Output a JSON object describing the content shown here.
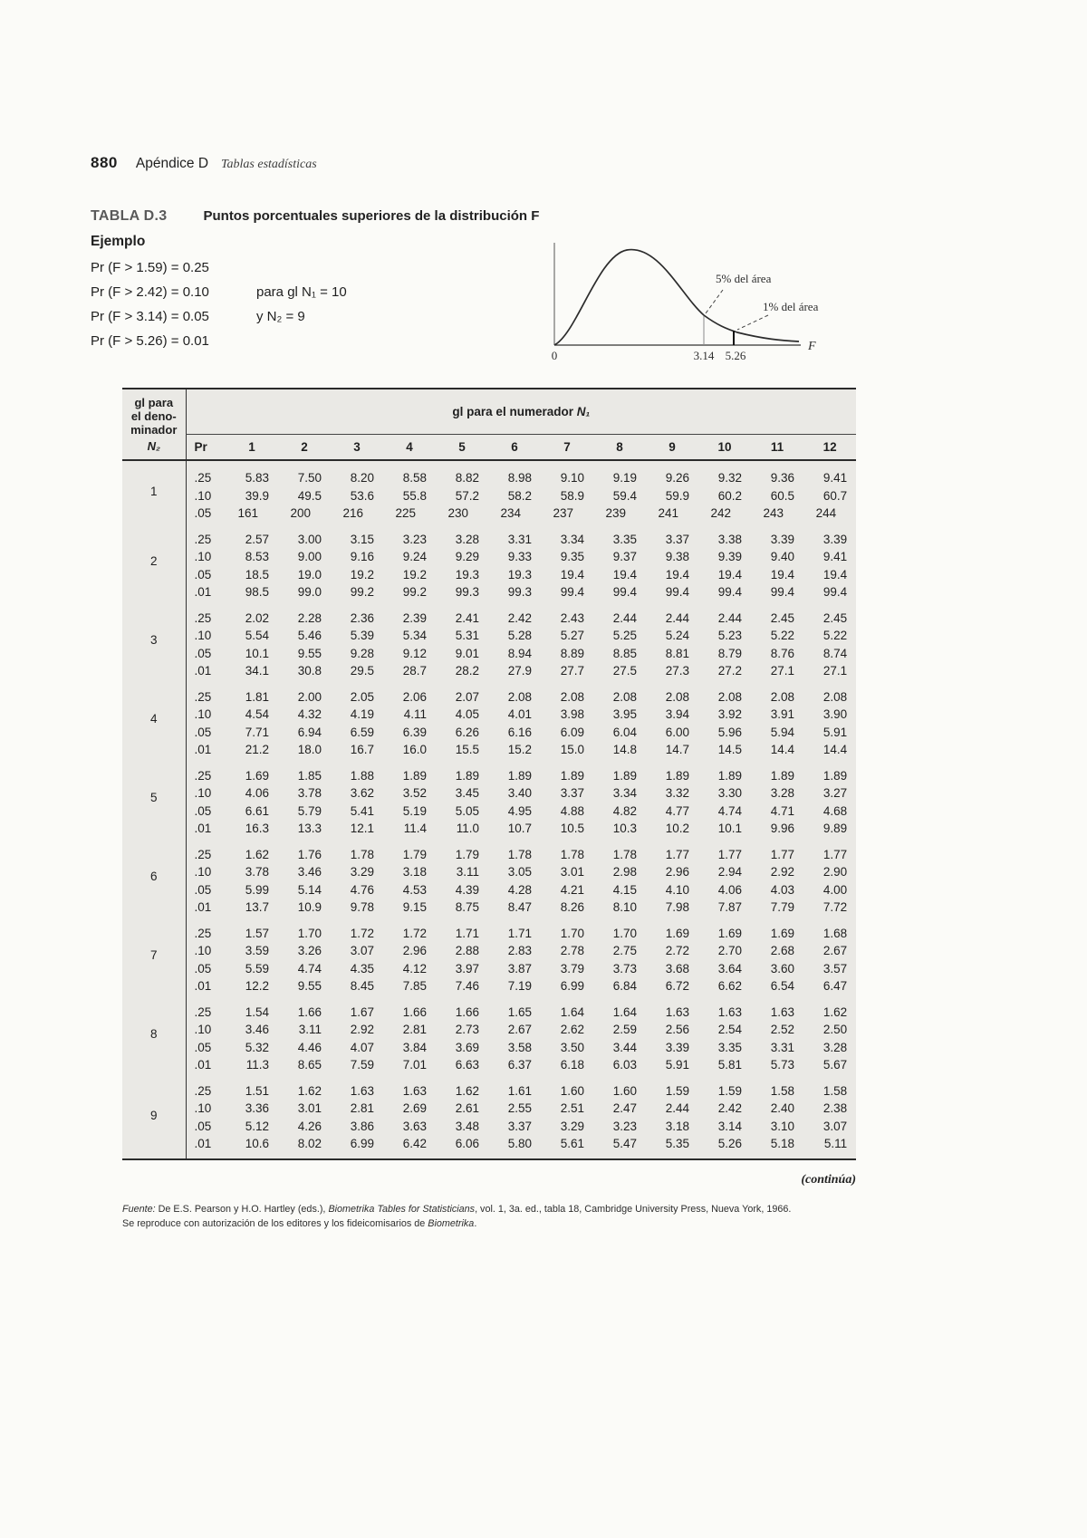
{
  "page": {
    "page_number": "880",
    "chapter": "Apéndice D",
    "chapter_subtitle": "Tablas estadísticas"
  },
  "table_header": {
    "label": "TABLA D.3",
    "title": "Puntos porcentuales superiores de la distribución F"
  },
  "example": {
    "heading": "Ejemplo",
    "lines": [
      {
        "eq": "Pr (F > 1.59) = 0.25",
        "note": ""
      },
      {
        "eq": "Pr (F > 2.42) = 0.10",
        "note": "para gl N₁ = 10"
      },
      {
        "eq": "Pr (F > 3.14) = 0.05",
        "note": "y N₂ = 9"
      },
      {
        "eq": "Pr (F > 5.26) = 0.01",
        "note": ""
      }
    ]
  },
  "figure": {
    "label_5pct": "5% del área",
    "label_1pct": "1% del área",
    "x_origin": "0",
    "x_tick_1": "3.14",
    "x_tick_2": "5.26",
    "axis_label": "F"
  },
  "table": {
    "corner_lines": [
      "gl para",
      "el deno-",
      "minador"
    ],
    "corner_var": "N₂",
    "numerator_header_text": "gl para el numerador ",
    "numerator_header_var": "N₁",
    "pr_header": "Pr",
    "columns": [
      "1",
      "2",
      "3",
      "4",
      "5",
      "6",
      "7",
      "8",
      "9",
      "10",
      "11",
      "12"
    ],
    "groups": [
      {
        "n2": "1",
        "rows": [
          {
            "pr": ".25",
            "values": [
              "5.83",
              "7.50",
              "8.20",
              "8.58",
              "8.82",
              "8.98",
              "9.10",
              "9.19",
              "9.26",
              "9.32",
              "9.36",
              "9.41"
            ]
          },
          {
            "pr": ".10",
            "values": [
              "39.9",
              "49.5",
              "53.6",
              "55.8",
              "57.2",
              "58.2",
              "58.9",
              "59.4",
              "59.9",
              "60.2",
              "60.5",
              "60.7"
            ]
          },
          {
            "pr": ".05",
            "values": [
              "161",
              "200",
              "216",
              "225",
              "230",
              "234",
              "237",
              "239",
              "241",
              "242",
              "243",
              "244"
            ]
          }
        ]
      },
      {
        "n2": "2",
        "rows": [
          {
            "pr": ".25",
            "values": [
              "2.57",
              "3.00",
              "3.15",
              "3.23",
              "3.28",
              "3.31",
              "3.34",
              "3.35",
              "3.37",
              "3.38",
              "3.39",
              "3.39"
            ]
          },
          {
            "pr": ".10",
            "values": [
              "8.53",
              "9.00",
              "9.16",
              "9.24",
              "9.29",
              "9.33",
              "9.35",
              "9.37",
              "9.38",
              "9.39",
              "9.40",
              "9.41"
            ]
          },
          {
            "pr": ".05",
            "values": [
              "18.5",
              "19.0",
              "19.2",
              "19.2",
              "19.3",
              "19.3",
              "19.4",
              "19.4",
              "19.4",
              "19.4",
              "19.4",
              "19.4"
            ]
          },
          {
            "pr": ".01",
            "values": [
              "98.5",
              "99.0",
              "99.2",
              "99.2",
              "99.3",
              "99.3",
              "99.4",
              "99.4",
              "99.4",
              "99.4",
              "99.4",
              "99.4"
            ]
          }
        ]
      },
      {
        "n2": "3",
        "rows": [
          {
            "pr": ".25",
            "values": [
              "2.02",
              "2.28",
              "2.36",
              "2.39",
              "2.41",
              "2.42",
              "2.43",
              "2.44",
              "2.44",
              "2.44",
              "2.45",
              "2.45"
            ]
          },
          {
            "pr": ".10",
            "values": [
              "5.54",
              "5.46",
              "5.39",
              "5.34",
              "5.31",
              "5.28",
              "5.27",
              "5.25",
              "5.24",
              "5.23",
              "5.22",
              "5.22"
            ]
          },
          {
            "pr": ".05",
            "values": [
              "10.1",
              "9.55",
              "9.28",
              "9.12",
              "9.01",
              "8.94",
              "8.89",
              "8.85",
              "8.81",
              "8.79",
              "8.76",
              "8.74"
            ]
          },
          {
            "pr": ".01",
            "values": [
              "34.1",
              "30.8",
              "29.5",
              "28.7",
              "28.2",
              "27.9",
              "27.7",
              "27.5",
              "27.3",
              "27.2",
              "27.1",
              "27.1"
            ]
          }
        ]
      },
      {
        "n2": "4",
        "rows": [
          {
            "pr": ".25",
            "values": [
              "1.81",
              "2.00",
              "2.05",
              "2.06",
              "2.07",
              "2.08",
              "2.08",
              "2.08",
              "2.08",
              "2.08",
              "2.08",
              "2.08"
            ]
          },
          {
            "pr": ".10",
            "values": [
              "4.54",
              "4.32",
              "4.19",
              "4.11",
              "4.05",
              "4.01",
              "3.98",
              "3.95",
              "3.94",
              "3.92",
              "3.91",
              "3.90"
            ]
          },
          {
            "pr": ".05",
            "values": [
              "7.71",
              "6.94",
              "6.59",
              "6.39",
              "6.26",
              "6.16",
              "6.09",
              "6.04",
              "6.00",
              "5.96",
              "5.94",
              "5.91"
            ]
          },
          {
            "pr": ".01",
            "values": [
              "21.2",
              "18.0",
              "16.7",
              "16.0",
              "15.5",
              "15.2",
              "15.0",
              "14.8",
              "14.7",
              "14.5",
              "14.4",
              "14.4"
            ]
          }
        ]
      },
      {
        "n2": "5",
        "rows": [
          {
            "pr": ".25",
            "values": [
              "1.69",
              "1.85",
              "1.88",
              "1.89",
              "1.89",
              "1.89",
              "1.89",
              "1.89",
              "1.89",
              "1.89",
              "1.89",
              "1.89"
            ]
          },
          {
            "pr": ".10",
            "values": [
              "4.06",
              "3.78",
              "3.62",
              "3.52",
              "3.45",
              "3.40",
              "3.37",
              "3.34",
              "3.32",
              "3.30",
              "3.28",
              "3.27"
            ]
          },
          {
            "pr": ".05",
            "values": [
              "6.61",
              "5.79",
              "5.41",
              "5.19",
              "5.05",
              "4.95",
              "4.88",
              "4.82",
              "4.77",
              "4.74",
              "4.71",
              "4.68"
            ]
          },
          {
            "pr": ".01",
            "values": [
              "16.3",
              "13.3",
              "12.1",
              "11.4",
              "11.0",
              "10.7",
              "10.5",
              "10.3",
              "10.2",
              "10.1",
              "9.96",
              "9.89"
            ]
          }
        ]
      },
      {
        "n2": "6",
        "rows": [
          {
            "pr": ".25",
            "values": [
              "1.62",
              "1.76",
              "1.78",
              "1.79",
              "1.79",
              "1.78",
              "1.78",
              "1.78",
              "1.77",
              "1.77",
              "1.77",
              "1.77"
            ]
          },
          {
            "pr": ".10",
            "values": [
              "3.78",
              "3.46",
              "3.29",
              "3.18",
              "3.11",
              "3.05",
              "3.01",
              "2.98",
              "2.96",
              "2.94",
              "2.92",
              "2.90"
            ]
          },
          {
            "pr": ".05",
            "values": [
              "5.99",
              "5.14",
              "4.76",
              "4.53",
              "4.39",
              "4.28",
              "4.21",
              "4.15",
              "4.10",
              "4.06",
              "4.03",
              "4.00"
            ]
          },
          {
            "pr": ".01",
            "values": [
              "13.7",
              "10.9",
              "9.78",
              "9.15",
              "8.75",
              "8.47",
              "8.26",
              "8.10",
              "7.98",
              "7.87",
              "7.79",
              "7.72"
            ]
          }
        ]
      },
      {
        "n2": "7",
        "rows": [
          {
            "pr": ".25",
            "values": [
              "1.57",
              "1.70",
              "1.72",
              "1.72",
              "1.71",
              "1.71",
              "1.70",
              "1.70",
              "1.69",
              "1.69",
              "1.69",
              "1.68"
            ]
          },
          {
            "pr": ".10",
            "values": [
              "3.59",
              "3.26",
              "3.07",
              "2.96",
              "2.88",
              "2.83",
              "2.78",
              "2.75",
              "2.72",
              "2.70",
              "2.68",
              "2.67"
            ]
          },
          {
            "pr": ".05",
            "values": [
              "5.59",
              "4.74",
              "4.35",
              "4.12",
              "3.97",
              "3.87",
              "3.79",
              "3.73",
              "3.68",
              "3.64",
              "3.60",
              "3.57"
            ]
          },
          {
            "pr": ".01",
            "values": [
              "12.2",
              "9.55",
              "8.45",
              "7.85",
              "7.46",
              "7.19",
              "6.99",
              "6.84",
              "6.72",
              "6.62",
              "6.54",
              "6.47"
            ]
          }
        ]
      },
      {
        "n2": "8",
        "rows": [
          {
            "pr": ".25",
            "values": [
              "1.54",
              "1.66",
              "1.67",
              "1.66",
              "1.66",
              "1.65",
              "1.64",
              "1.64",
              "1.63",
              "1.63",
              "1.63",
              "1.62"
            ]
          },
          {
            "pr": ".10",
            "values": [
              "3.46",
              "3.11",
              "2.92",
              "2.81",
              "2.73",
              "2.67",
              "2.62",
              "2.59",
              "2.56",
              "2.54",
              "2.52",
              "2.50"
            ]
          },
          {
            "pr": ".05",
            "values": [
              "5.32",
              "4.46",
              "4.07",
              "3.84",
              "3.69",
              "3.58",
              "3.50",
              "3.44",
              "3.39",
              "3.35",
              "3.31",
              "3.28"
            ]
          },
          {
            "pr": ".01",
            "values": [
              "11.3",
              "8.65",
              "7.59",
              "7.01",
              "6.63",
              "6.37",
              "6.18",
              "6.03",
              "5.91",
              "5.81",
              "5.73",
              "5.67"
            ]
          }
        ]
      },
      {
        "n2": "9",
        "rows": [
          {
            "pr": ".25",
            "values": [
              "1.51",
              "1.62",
              "1.63",
              "1.63",
              "1.62",
              "1.61",
              "1.60",
              "1.60",
              "1.59",
              "1.59",
              "1.58",
              "1.58"
            ]
          },
          {
            "pr": ".10",
            "values": [
              "3.36",
              "3.01",
              "2.81",
              "2.69",
              "2.61",
              "2.55",
              "2.51",
              "2.47",
              "2.44",
              "2.42",
              "2.40",
              "2.38"
            ]
          },
          {
            "pr": ".05",
            "values": [
              "5.12",
              "4.26",
              "3.86",
              "3.63",
              "3.48",
              "3.37",
              "3.29",
              "3.23",
              "3.18",
              "3.14",
              "3.10",
              "3.07"
            ]
          },
          {
            "pr": ".01",
            "values": [
              "10.6",
              "8.02",
              "6.99",
              "6.42",
              "6.06",
              "5.80",
              "5.61",
              "5.47",
              "5.35",
              "5.26",
              "5.18",
              "5.11"
            ]
          }
        ]
      }
    ]
  },
  "footer": {
    "continues": "(continúa)",
    "source_line1": [
      {
        "text": "Fuente: ",
        "italic": true
      },
      {
        "text": "De E.S. Pearson y H.O. Hartley (eds.), ",
        "italic": false
      },
      {
        "text": "Biometrika Tables for Statisticians",
        "italic": true
      },
      {
        "text": ", vol. 1, 3a. ed., tabla 18, Cambridge University Press, Nueva York, 1966.",
        "italic": false
      }
    ],
    "source_line2": [
      {
        "text": "Se reproduce con autorización de los editores y los fideicomisarios de ",
        "italic": false
      },
      {
        "text": "Biometrika",
        "italic": true
      },
      {
        "text": ".",
        "italic": false
      }
    ]
  }
}
